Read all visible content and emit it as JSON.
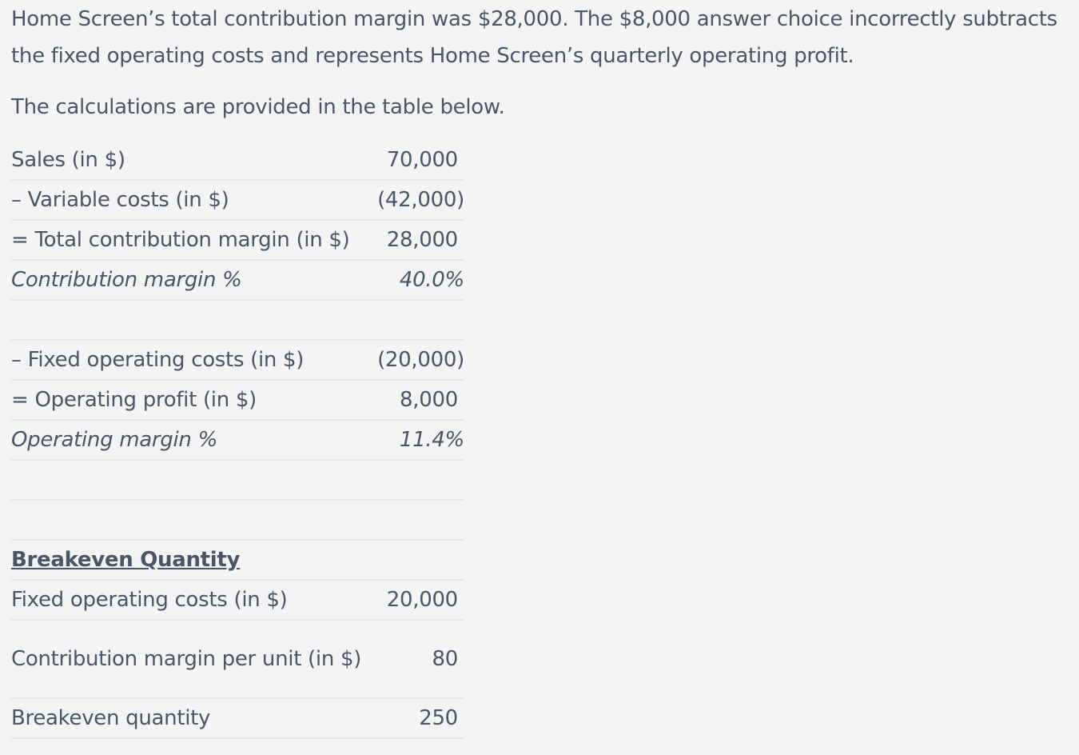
{
  "paragraphs": {
    "p1": "Home Screen’s total contribution margin was $28,000.  The $8,000 answer choice incorrectly subtracts the fixed operating costs and represents Home Screen’s quarterly operating profit.",
    "p2": "The calculations are provided in the table below."
  },
  "table": {
    "rows": [
      {
        "label": "Sales (in $)",
        "value": "70,000"
      },
      {
        "label": "– Variable costs (in $)",
        "value": "(42,000)"
      },
      {
        "label": "= Total contribution margin (in $)",
        "value": "28,000"
      },
      {
        "label": "Contribution margin %",
        "value": "40.0%"
      },
      {
        "label": "",
        "value": ""
      },
      {
        "label": "– Fixed operating costs (in $)",
        "value": "(20,000)"
      },
      {
        "label": "= Operating profit (in $)",
        "value": "8,000"
      },
      {
        "label": "Operating margin %",
        "value": "11.4%"
      },
      {
        "label": "",
        "value": ""
      },
      {
        "label": "",
        "value": ""
      },
      {
        "label": "Breakeven Quantity",
        "value": ""
      },
      {
        "label": "Fixed operating costs (in $)",
        "value": "20,000"
      },
      {
        "label": "Contribution margin per unit (in $)",
        "value": "80"
      },
      {
        "label": "Breakeven quantity",
        "value": "250"
      }
    ]
  }
}
